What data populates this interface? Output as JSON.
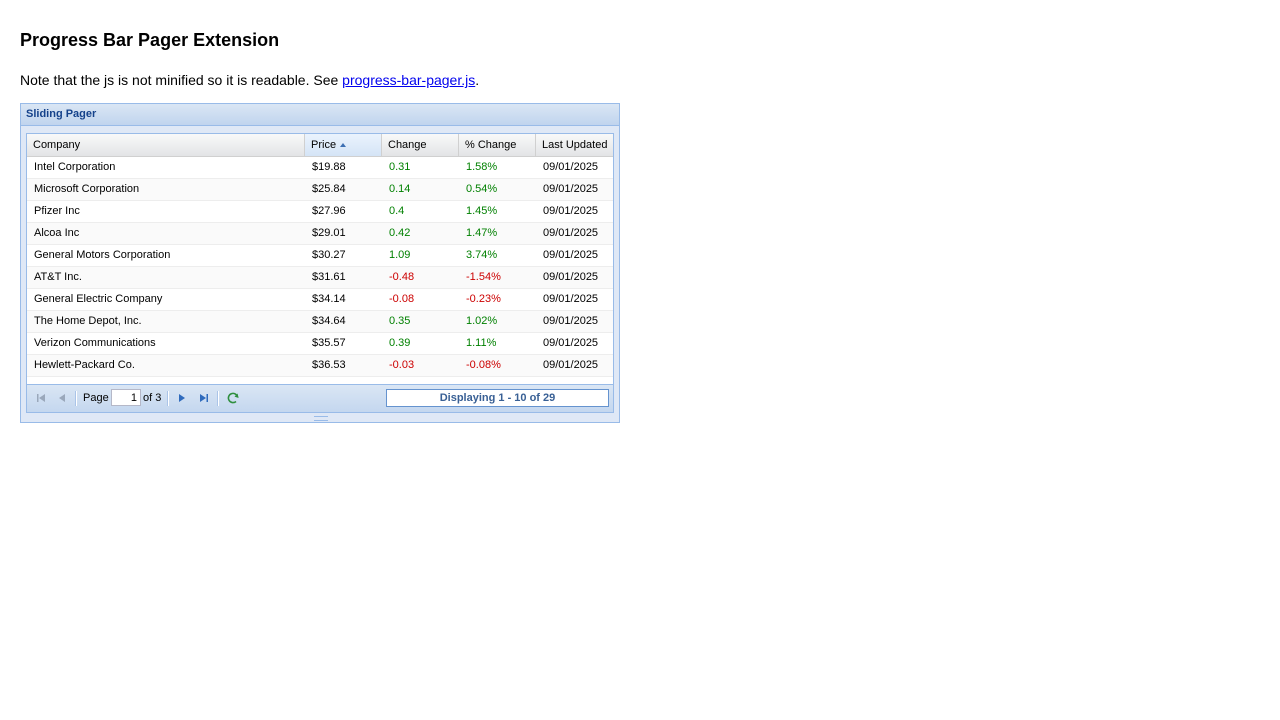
{
  "page": {
    "title": "Progress Bar Pager Extension",
    "note_prefix": "Note that the js is not minified so it is readable. See ",
    "note_link": "progress-bar-pager.js",
    "note_suffix": "."
  },
  "panel": {
    "title": "Sliding Pager"
  },
  "grid": {
    "columns": {
      "company": "Company",
      "price": "Price",
      "change": "Change",
      "pct_change": "% Change",
      "last_updated": "Last Updated"
    },
    "sort": {
      "column": "price",
      "direction": "asc"
    },
    "rows": [
      {
        "company": "Intel Corporation",
        "price": "$19.88",
        "change": "0.31",
        "pct": "1.58%",
        "date": "09/01/2025",
        "trend": "pos"
      },
      {
        "company": "Microsoft Corporation",
        "price": "$25.84",
        "change": "0.14",
        "pct": "0.54%",
        "date": "09/01/2025",
        "trend": "pos"
      },
      {
        "company": "Pfizer Inc",
        "price": "$27.96",
        "change": "0.4",
        "pct": "1.45%",
        "date": "09/01/2025",
        "trend": "pos"
      },
      {
        "company": "Alcoa Inc",
        "price": "$29.01",
        "change": "0.42",
        "pct": "1.47%",
        "date": "09/01/2025",
        "trend": "pos"
      },
      {
        "company": "General Motors Corporation",
        "price": "$30.27",
        "change": "1.09",
        "pct": "3.74%",
        "date": "09/01/2025",
        "trend": "pos"
      },
      {
        "company": "AT&T Inc.",
        "price": "$31.61",
        "change": "-0.48",
        "pct": "-1.54%",
        "date": "09/01/2025",
        "trend": "neg"
      },
      {
        "company": "General Electric Company",
        "price": "$34.14",
        "change": "-0.08",
        "pct": "-0.23%",
        "date": "09/01/2025",
        "trend": "neg"
      },
      {
        "company": "The Home Depot, Inc.",
        "price": "$34.64",
        "change": "0.35",
        "pct": "1.02%",
        "date": "09/01/2025",
        "trend": "pos"
      },
      {
        "company": "Verizon Communications",
        "price": "$35.57",
        "change": "0.39",
        "pct": "1.11%",
        "date": "09/01/2025",
        "trend": "pos"
      },
      {
        "company": "Hewlett-Packard Co.",
        "price": "$36.53",
        "change": "-0.03",
        "pct": "-0.08%",
        "date": "09/01/2025",
        "trend": "neg"
      }
    ]
  },
  "pager": {
    "page_label": "Page",
    "page_value": "1",
    "of_label": "of 3",
    "progress_text": "Displaying 1 - 10 of 29",
    "progress_fraction": 0.0,
    "icons": {
      "first": "first-page-icon",
      "prev": "prev-page-icon",
      "next": "next-page-icon",
      "last": "last-page-icon",
      "refresh": "refresh-icon"
    }
  },
  "colors": {
    "positive": "#008000",
    "negative": "#cc0000",
    "panel_title": "#15428b",
    "border": "#99bbe8",
    "link": "#0000ee"
  }
}
